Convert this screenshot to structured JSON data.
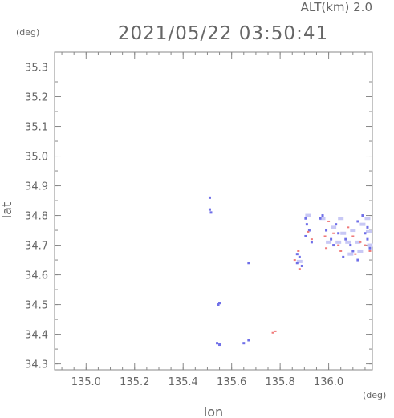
{
  "chart_data": {
    "type": "scatter",
    "title": "2021/05/22 03:50:41",
    "subtitle": "ALT(km) 2.0",
    "xlabel": "lon",
    "ylabel": "lat",
    "xunit": "(deg)",
    "yunit": "(deg)",
    "xlim": [
      134.87,
      136.18
    ],
    "ylim": [
      34.28,
      35.35
    ],
    "xticks": [
      "135.0",
      "135.2",
      "135.4",
      "135.6",
      "135.8",
      "136.0"
    ],
    "yticks": [
      "34.3",
      "34.4",
      "34.5",
      "34.6",
      "34.7",
      "34.8",
      "34.9",
      "35.0",
      "35.1",
      "35.2",
      "35.3"
    ],
    "colors": {
      "blue": "#6f6fe8",
      "red": "#f07a7a",
      "light_blue": "#c8c8f5"
    },
    "series": [
      {
        "color": "blue",
        "points": [
          [
            135.51,
            34.86
          ],
          [
            135.51,
            34.82
          ],
          [
            135.515,
            34.81
          ],
          [
            135.55,
            34.505
          ],
          [
            135.545,
            34.5
          ],
          [
            135.54,
            34.37
          ],
          [
            135.55,
            34.365
          ],
          [
            135.67,
            34.38
          ],
          [
            135.65,
            34.37
          ],
          [
            135.67,
            34.64
          ],
          [
            135.87,
            34.67
          ],
          [
            135.87,
            34.64
          ],
          [
            135.88,
            34.66
          ],
          [
            135.89,
            34.63
          ],
          [
            135.905,
            34.79
          ],
          [
            135.91,
            34.77
          ],
          [
            135.92,
            34.75
          ],
          [
            135.905,
            34.73
          ],
          [
            135.93,
            34.71
          ],
          [
            135.965,
            34.79
          ],
          [
            135.975,
            34.8
          ],
          [
            135.99,
            34.75
          ],
          [
            136.01,
            34.72
          ],
          [
            136.02,
            34.7
          ],
          [
            136.04,
            34.74
          ],
          [
            136.07,
            34.72
          ],
          [
            136.09,
            34.7
          ],
          [
            136.1,
            34.68
          ],
          [
            136.12,
            34.78
          ],
          [
            136.14,
            34.8
          ],
          [
            136.15,
            34.74
          ],
          [
            136.16,
            34.72
          ],
          [
            136.17,
            34.69
          ],
          [
            136.06,
            34.66
          ],
          [
            136.12,
            34.65
          ],
          [
            136.16,
            34.76
          ],
          [
            136.03,
            34.77
          ]
        ]
      },
      {
        "color": "red",
        "points": [
          [
            135.78,
            34.41
          ],
          [
            135.77,
            34.405
          ],
          [
            135.86,
            34.65
          ],
          [
            135.88,
            34.62
          ],
          [
            135.875,
            34.68
          ],
          [
            135.915,
            34.745
          ],
          [
            135.93,
            34.72
          ],
          [
            135.985,
            34.73
          ],
          [
            135.99,
            34.69
          ],
          [
            136.02,
            34.74
          ],
          [
            136.04,
            34.7
          ],
          [
            136.08,
            34.76
          ],
          [
            136.1,
            34.73
          ],
          [
            136.11,
            34.67
          ],
          [
            136.13,
            34.71
          ],
          [
            136.15,
            34.7
          ],
          [
            136.17,
            34.68
          ],
          [
            136.05,
            34.68
          ],
          [
            136.0,
            34.78
          ]
        ]
      },
      {
        "color": "light_blue",
        "points": [
          [
            135.975,
            34.79
          ],
          [
            136.04,
            34.71
          ],
          [
            136.06,
            34.74
          ],
          [
            136.08,
            34.71
          ],
          [
            136.1,
            34.75
          ],
          [
            136.12,
            34.71
          ],
          [
            136.14,
            34.77
          ],
          [
            136.16,
            34.79
          ],
          [
            136.165,
            34.745
          ],
          [
            136.05,
            34.79
          ],
          [
            136.02,
            34.76
          ],
          [
            135.915,
            34.8
          ],
          [
            136.13,
            34.68
          ],
          [
            136.09,
            34.67
          ],
          [
            136.17,
            34.7
          ],
          [
            135.88,
            34.645
          ],
          [
            136.0,
            34.71
          ]
        ]
      }
    ]
  }
}
